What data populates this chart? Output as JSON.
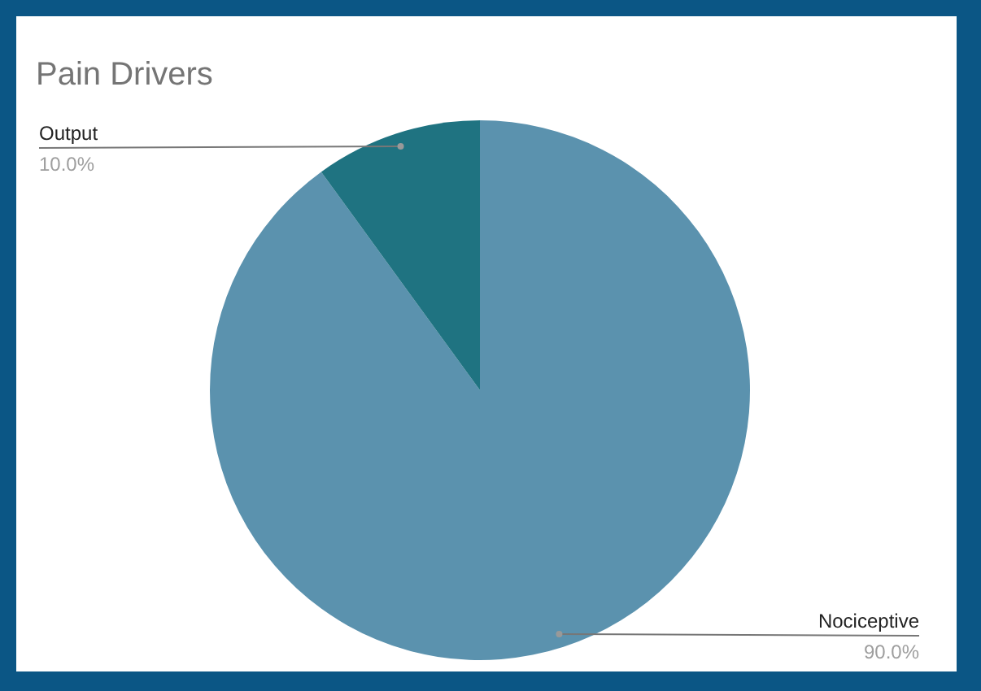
{
  "chart_data": {
    "type": "pie",
    "title": "Pain Drivers",
    "categories": [
      "Nociceptive",
      "Output"
    ],
    "values": [
      90,
      10
    ],
    "value_labels": [
      "90.0%",
      "10.0%"
    ],
    "colors": [
      "#5b92ae",
      "#1f7381"
    ]
  }
}
